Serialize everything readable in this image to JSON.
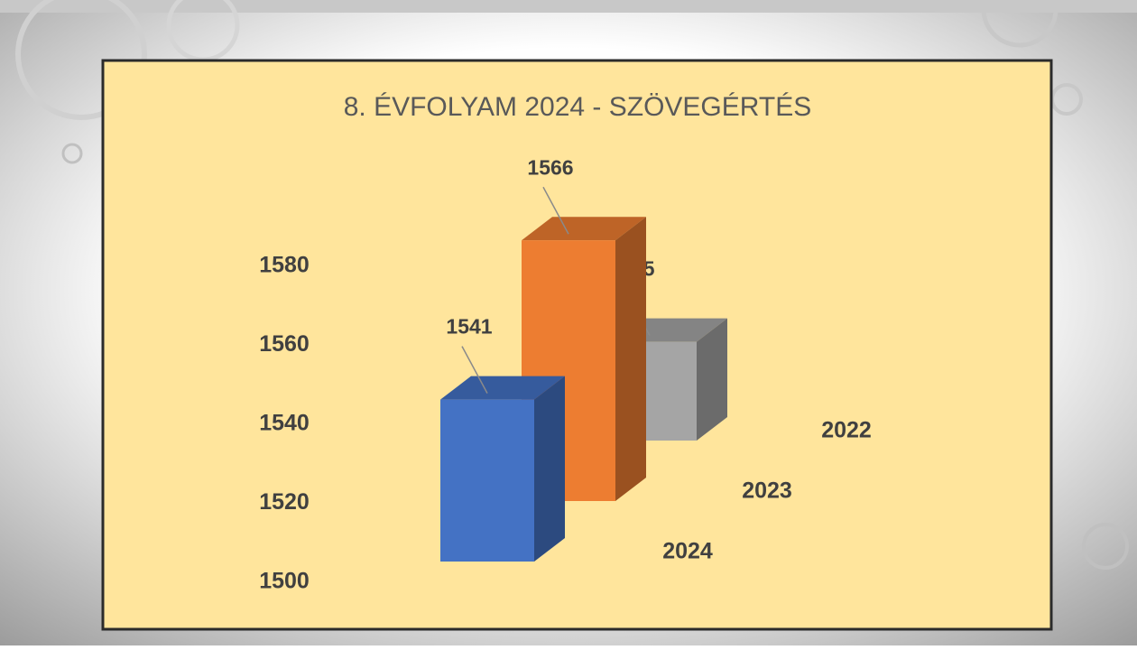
{
  "chart_data": {
    "type": "bar3d",
    "title": "8. ÉVFOLYAM 2024 - SZÖVEGÉRTÉS",
    "categories": [
      "2024",
      "2023",
      "2022"
    ],
    "values": [
      1541,
      1566,
      1525
    ],
    "colors": [
      "#4472c4",
      "#ed7d31",
      "#a5a5a5"
    ],
    "ylim": [
      1500,
      1580
    ],
    "yticks": [
      1500,
      1520,
      1540,
      1560,
      1580
    ]
  }
}
